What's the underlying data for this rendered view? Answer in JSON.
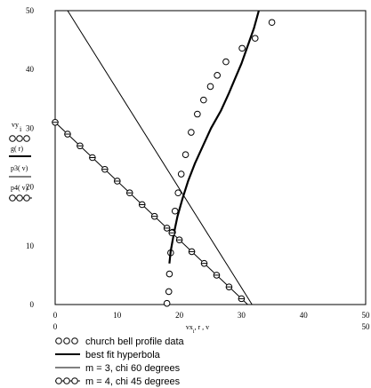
{
  "chart_data": {
    "type": "scatter",
    "xlim": [
      0,
      50
    ],
    "ylim": [
      0,
      50
    ],
    "x_tick_labels": [
      "0",
      "10",
      "20",
      "30",
      "40",
      "50"
    ],
    "y_tick_labels": [
      "0",
      "10",
      "20",
      "30",
      "40",
      "50"
    ],
    "x_axis_label": "vx_i , r , v",
    "x_axis_label_parts": [
      "vx",
      "i",
      ", r , v"
    ],
    "y_axis_label_lines": [
      "vy",
      "i",
      "g( r)",
      "p3( v)",
      "p4( v)"
    ],
    "legend_items": [
      "church bell profile data",
      "best fit hyperbola",
      "m = 3, chi 60 degrees",
      "m = 4, chi 45 degrees"
    ],
    "grid": false,
    "series": [
      {
        "name": "church bell profile data",
        "marker": "open-circle",
        "points": [
          [
            18.0,
            0.2
          ],
          [
            18.3,
            2.2
          ],
          [
            18.4,
            5.2
          ],
          [
            18.6,
            8.8
          ],
          [
            18.9,
            12.3
          ],
          [
            19.3,
            15.9
          ],
          [
            19.8,
            19.0
          ],
          [
            20.3,
            22.2
          ],
          [
            21.0,
            25.5
          ],
          [
            21.9,
            29.3
          ],
          [
            22.9,
            32.4
          ],
          [
            23.9,
            34.8
          ],
          [
            25.0,
            37.1
          ],
          [
            26.1,
            39.0
          ],
          [
            27.5,
            41.3
          ],
          [
            30.1,
            43.6
          ],
          [
            32.2,
            45.3
          ],
          [
            34.9,
            48.0
          ]
        ]
      },
      {
        "name": "best fit hyperbola",
        "style": "thick-line",
        "points": [
          [
            18.4,
            7.0
          ],
          [
            18.6,
            9.0
          ],
          [
            19.1,
            12.0
          ],
          [
            19.7,
            15.0
          ],
          [
            20.5,
            18.0
          ],
          [
            21.4,
            21.0
          ],
          [
            22.5,
            24.0
          ],
          [
            23.8,
            27.0
          ],
          [
            25.1,
            30.0
          ],
          [
            26.7,
            33.0
          ],
          [
            28.0,
            36.0
          ],
          [
            29.0,
            38.5
          ],
          [
            30.0,
            41.0
          ],
          [
            31.0,
            44.0
          ],
          [
            32.0,
            47.0
          ],
          [
            32.8,
            50.0
          ]
        ]
      },
      {
        "name": "m = 3, chi 60 degrees",
        "style": "thin-line",
        "points": [
          [
            2.0,
            50.0
          ],
          [
            31.7,
            0.0
          ]
        ]
      },
      {
        "name": "m = 4, chi 45 degrees",
        "style": "line-with-circles",
        "points": [
          [
            0.0,
            31.0
          ],
          [
            31.0,
            0.0
          ]
        ],
        "markers": [
          [
            0.0,
            31.0
          ],
          [
            2.0,
            29.0
          ],
          [
            4.0,
            27.0
          ],
          [
            6.0,
            25.0
          ],
          [
            8.0,
            23.0
          ],
          [
            10.0,
            21.0
          ],
          [
            12.0,
            19.0
          ],
          [
            14.0,
            17.0
          ],
          [
            16.0,
            15.0
          ],
          [
            18.0,
            13.0
          ],
          [
            18.8,
            12.2
          ],
          [
            20.0,
            11.0
          ],
          [
            22.0,
            9.0
          ],
          [
            24.0,
            7.0
          ],
          [
            26.0,
            5.0
          ],
          [
            28.0,
            3.0
          ],
          [
            30.0,
            1.0
          ]
        ]
      }
    ]
  }
}
